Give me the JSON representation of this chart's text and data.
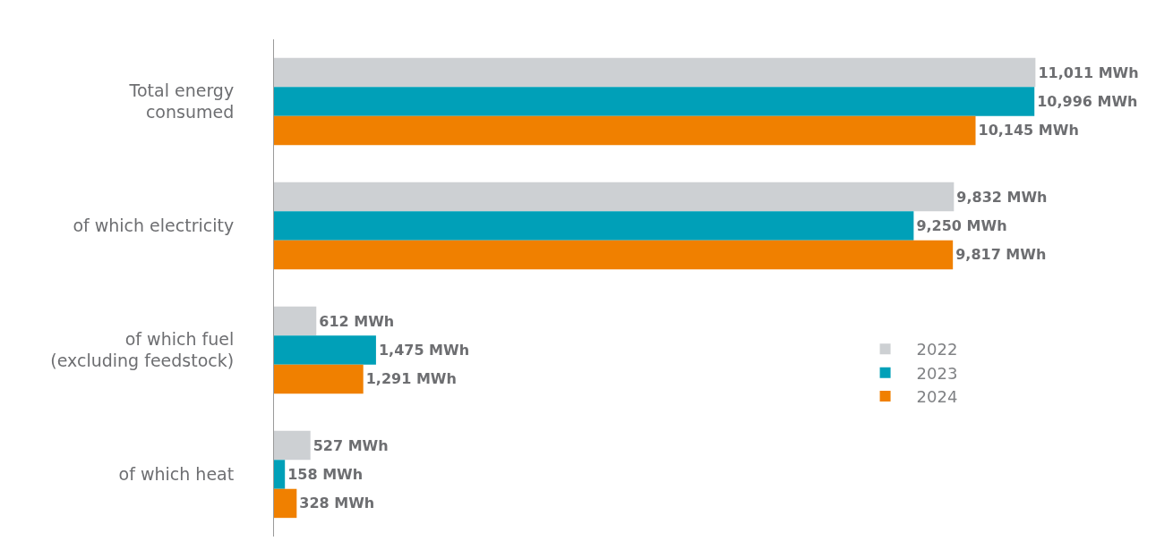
{
  "chart_data": {
    "type": "bar",
    "orientation": "horizontal",
    "categories": [
      "Total energy\nconsumed",
      "of which electricity",
      "of which fuel\n(excluding feedstock)",
      "of which heat"
    ],
    "series": [
      {
        "name": "2022",
        "color": "#cdd0d3",
        "values": [
          11011,
          9832,
          612,
          527
        ],
        "value_labels": [
          "11,011 MWh",
          "9,832 MWh",
          "612 MWh",
          "527 MWh"
        ]
      },
      {
        "name": "2023",
        "color": "#00a0b8",
        "values": [
          10996,
          9250,
          1475,
          158
        ],
        "value_labels": [
          "10,996 MWh",
          "9,250 MWh",
          "1,475 MWh",
          "158 MWh"
        ]
      },
      {
        "name": "2024",
        "color": "#f08000",
        "values": [
          10145,
          9817,
          1291,
          328
        ],
        "value_labels": [
          "10,145 MWh",
          "9,817 MWh",
          "1,291 MWh",
          "328 MWh"
        ]
      }
    ],
    "xlim": [
      0,
      13000
    ],
    "tick_labels": "y",
    "legend": "right"
  }
}
